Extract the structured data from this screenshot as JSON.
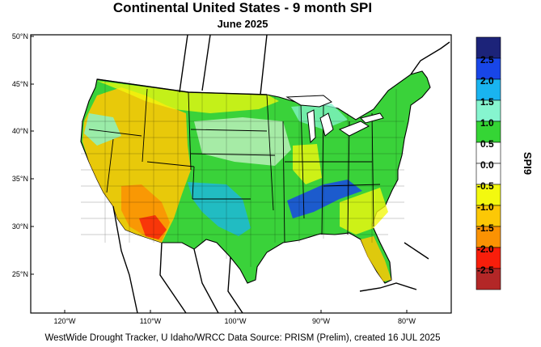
{
  "title": "Continental United States - 9 month SPI",
  "subtitle": "June 2025",
  "footer": "WestWide Drought Tracker, U Idaho/WRCC Data Source: PRISM (Prelim), created 16 JUL 2025",
  "map": {
    "lat_labels": [
      "50°N",
      "45°N",
      "40°N",
      "35°N",
      "30°N",
      "25°N"
    ],
    "lon_labels": [
      "120°W",
      "110°W",
      "100°W",
      "90°W",
      "80°W"
    ]
  },
  "legend": {
    "title": "SPI9",
    "labels": [
      "2.5",
      "2.0",
      "1.5",
      "1.0",
      "0.5",
      "0.0",
      "-0.5",
      "-1.0",
      "-1.5",
      "-2.0",
      "-2.5"
    ],
    "colors": [
      "#1c2379",
      "#1846e8",
      "#19b4f0",
      "#86f5cf",
      "#35d535",
      "#ffffff",
      "#ffffff",
      "#f3f90f",
      "#fcc806",
      "#fb9203",
      "#f81e0b",
      "#b32727"
    ]
  }
}
